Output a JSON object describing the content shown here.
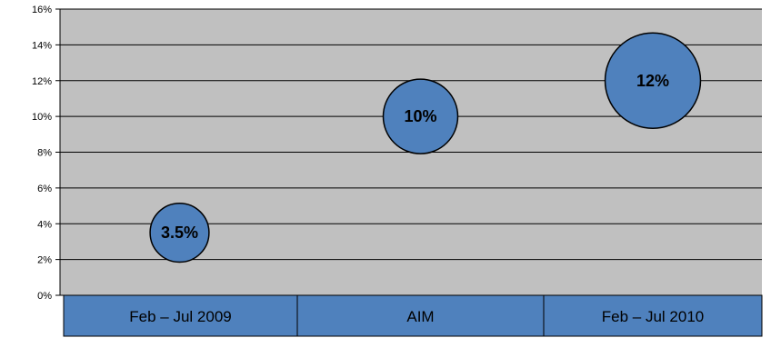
{
  "chart_data": {
    "type": "bubble",
    "categories": [
      "Feb – Jul 2009",
      "AIM",
      "Feb – Jul 2010"
    ],
    "values": [
      3.5,
      10,
      12
    ],
    "data_labels": [
      "3.5%",
      "10%",
      "12%"
    ],
    "bubble_relative_size": [
      0.79,
      1.0,
      1.28
    ],
    "ylim": [
      0,
      16
    ],
    "yticks": [
      0,
      2,
      4,
      6,
      8,
      10,
      12,
      14,
      16
    ],
    "ytick_labels": [
      "0%",
      "2%",
      "4%",
      "6%",
      "8%",
      "10%",
      "12%",
      "14%",
      "16%"
    ],
    "grid": true,
    "legend": "none"
  },
  "colors": {
    "plot_background": "#c0c0c0",
    "bubble_fill": "#4f81bd",
    "bubble_stroke": "#000000",
    "category_cell_fill": "#4f81bd",
    "gridline": "#000000"
  }
}
